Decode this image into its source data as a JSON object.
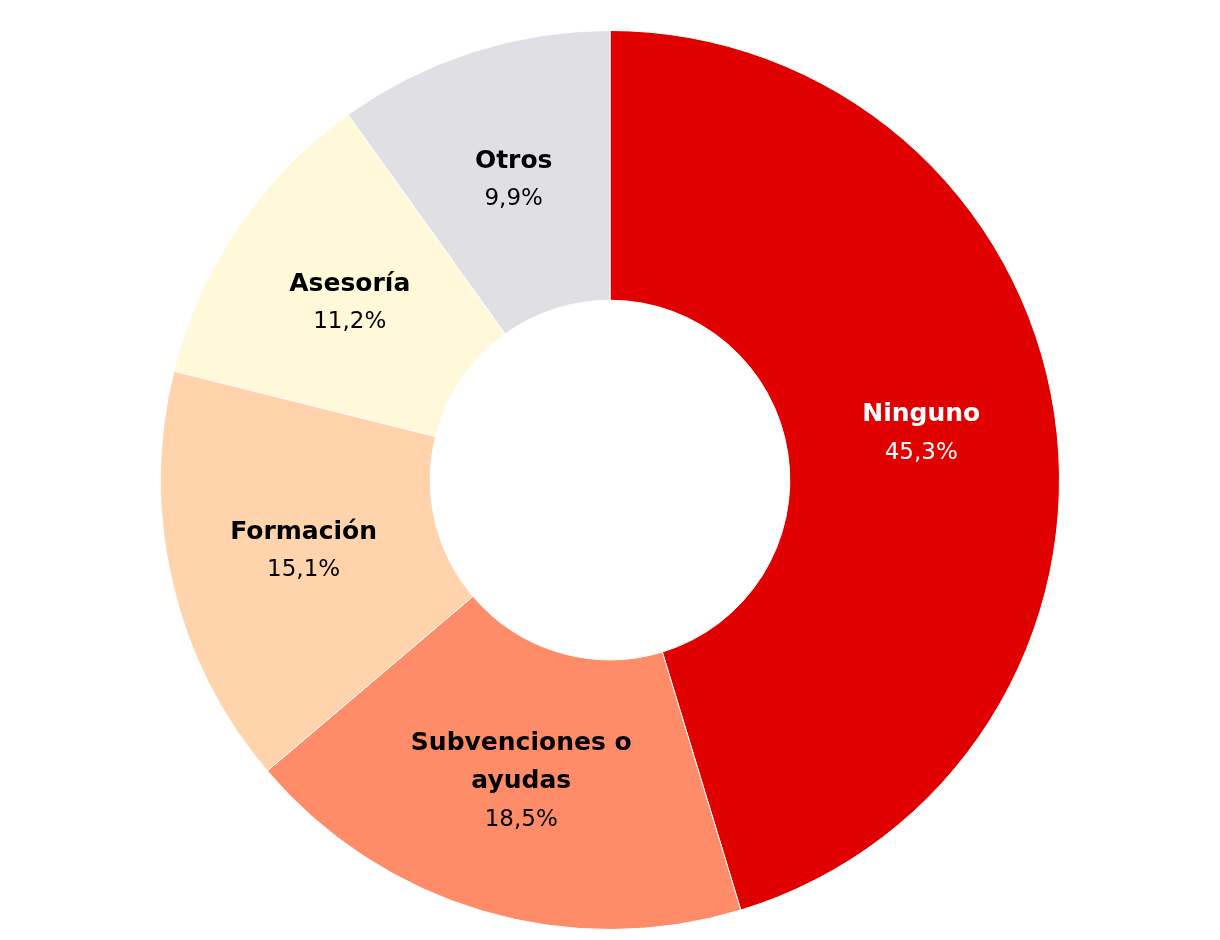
{
  "chart_data": {
    "type": "donut",
    "categories": [
      "Ninguno",
      "Subvenciones o ayudas",
      "Formación",
      "Asesoría",
      "Otros"
    ],
    "values": [
      45.3,
      18.5,
      15.1,
      11.2,
      9.9
    ],
    "colors": [
      "#e00000",
      "#ff8c69",
      "#ffd4ad",
      "#fff8d9",
      "#e0dfe4"
    ],
    "value_labels": [
      "45,3%",
      "18,5%",
      "15,1%",
      "11,2%",
      "9,9%"
    ],
    "legend": false
  }
}
